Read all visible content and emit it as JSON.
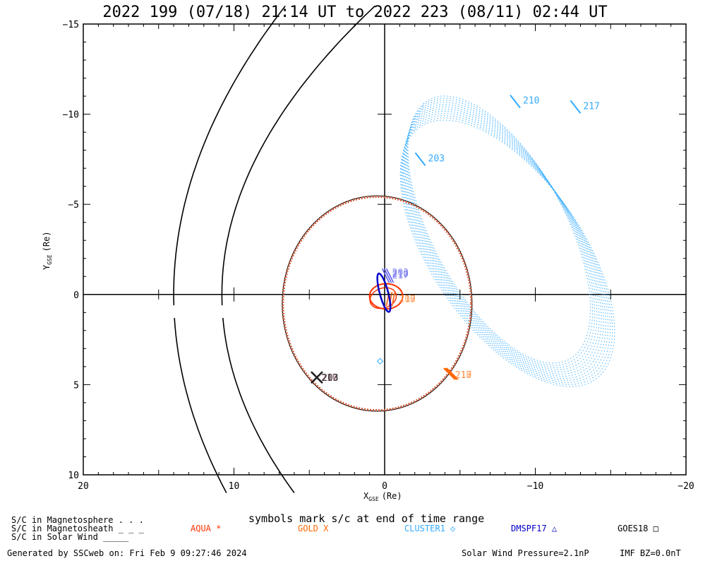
{
  "chart_data": {
    "type": "line",
    "title": "2022 199 (07/18) 21:14 UT to 2022 223 (08/11) 02:44 UT",
    "xlabel_main": "X",
    "xlabel_sub": "GSE",
    "xlabel_unit": "(Re)",
    "ylabel_main": "Y",
    "ylabel_sub": "GSE",
    "ylabel_unit": "(Re)",
    "xlim": [
      20,
      -20
    ],
    "ylim": [
      -15,
      10
    ],
    "x_ticks": [
      20,
      10,
      0,
      -10,
      -20
    ],
    "y_ticks": [
      -15,
      -10,
      -5,
      0,
      5,
      10
    ],
    "x_tick_labels": [
      "20",
      "10",
      "0",
      "−10",
      "−20"
    ],
    "y_tick_labels": [
      "−15",
      "−10",
      "−5",
      "0",
      "5",
      "10"
    ],
    "grid": false,
    "boundaries": [
      {
        "name": "bow-shock",
        "nose_x": 14.0,
        "flank_y": 22.0
      },
      {
        "name": "magnetopause",
        "nose_x": 10.8,
        "flank_y": 16.5
      }
    ],
    "series": [
      {
        "name": "AQUA",
        "color": "#ff3300",
        "orbit_radius": 1.1,
        "labels": [
          "217",
          "210",
          "203"
        ],
        "label_pos": [
          -0.3,
          0.1
        ]
      },
      {
        "name": "GOLD",
        "color": "#ff6600",
        "orbit_radius": 6.3,
        "labels": [
          "217",
          "213",
          "210"
        ],
        "label_pos": [
          -4.3,
          4.4
        ]
      },
      {
        "name": "CLUSTER1",
        "color": "#33aaff",
        "apogee": [
          -15.5,
          -11
        ],
        "labels": [
          "203",
          "210",
          "217"
        ],
        "label_x": [
          -2.6,
          -8.9,
          -12.9
        ],
        "label_y": [
          -7.7,
          -10.9,
          -10.6
        ]
      },
      {
        "name": "DMSPF17",
        "color": "#0000cc",
        "orbit_radius": 1.1,
        "labels": [
          "217",
          "210",
          "203"
        ],
        "label_pos": [
          -0.4,
          -1.2
        ]
      },
      {
        "name": "GOES18",
        "color": "#000000",
        "orbit_radius": 6.6,
        "labels": [
          "217",
          "210",
          "203"
        ],
        "label_pos": [
          4.5,
          4.6
        ]
      }
    ]
  },
  "legend": {
    "note": "symbols mark s/c at end of time range",
    "region_lines": [
      {
        "label": "S/C in Magnetosphere",
        "style": ". . ."
      },
      {
        "label": "S/C in Magnetosheath",
        "style": "_ _ _"
      },
      {
        "label": "S/C in Solar Wind",
        "style": "_____"
      }
    ],
    "spacecraft": [
      {
        "name": "AQUA",
        "symbol": "*",
        "color": "#ff3300"
      },
      {
        "name": "GOLD",
        "symbol": "X",
        "color": "#ff6600"
      },
      {
        "name": "CLUSTER1",
        "symbol": "◇",
        "color": "#33aaff"
      },
      {
        "name": "DMSPF17",
        "symbol": "△",
        "color": "#0000cc"
      },
      {
        "name": "GOES18",
        "symbol": "□",
        "color": "#000000"
      }
    ]
  },
  "footer": {
    "generated": "Generated by SSCweb on: Fri Feb  9 09:27:46 2024",
    "pressure": "Solar Wind Pressure=2.1nP",
    "imf": "IMF BZ=0.0nT"
  }
}
